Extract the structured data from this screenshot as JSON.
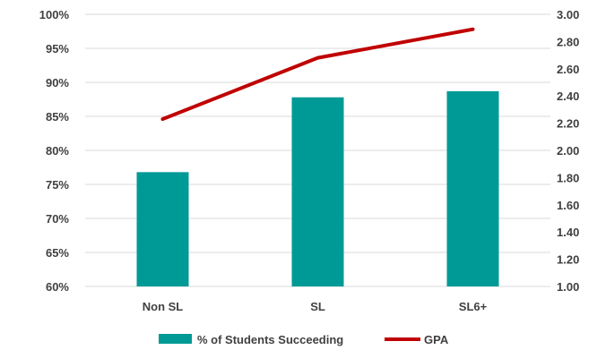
{
  "chart_data": {
    "type": "bar",
    "categories": [
      "Non SL",
      "SL",
      "SL6+"
    ],
    "series": [
      {
        "name": "% of Students Succeeding",
        "type": "bar",
        "axis": "left",
        "values": [
          76.8,
          87.8,
          88.7
        ]
      },
      {
        "name": "GPA",
        "type": "line",
        "axis": "right",
        "values": [
          2.23,
          2.68,
          2.89
        ]
      }
    ],
    "y_left": {
      "ticks": [
        "100%",
        "95%",
        "90%",
        "85%",
        "80%",
        "75%",
        "70%",
        "65%",
        "60%"
      ],
      "ylim": [
        60,
        100
      ]
    },
    "y_right": {
      "ticks": [
        "3.00",
        "2.80",
        "2.60",
        "2.40",
        "2.20",
        "2.00",
        "1.80",
        "1.60",
        "1.40",
        "1.20",
        "1.00"
      ],
      "ylim": [
        1.0,
        3.0
      ]
    },
    "grid": true,
    "legend_position": "bottom",
    "colors": {
      "bar": "#009a96",
      "line": "#c00000",
      "grid": "#d9d9d9"
    }
  }
}
